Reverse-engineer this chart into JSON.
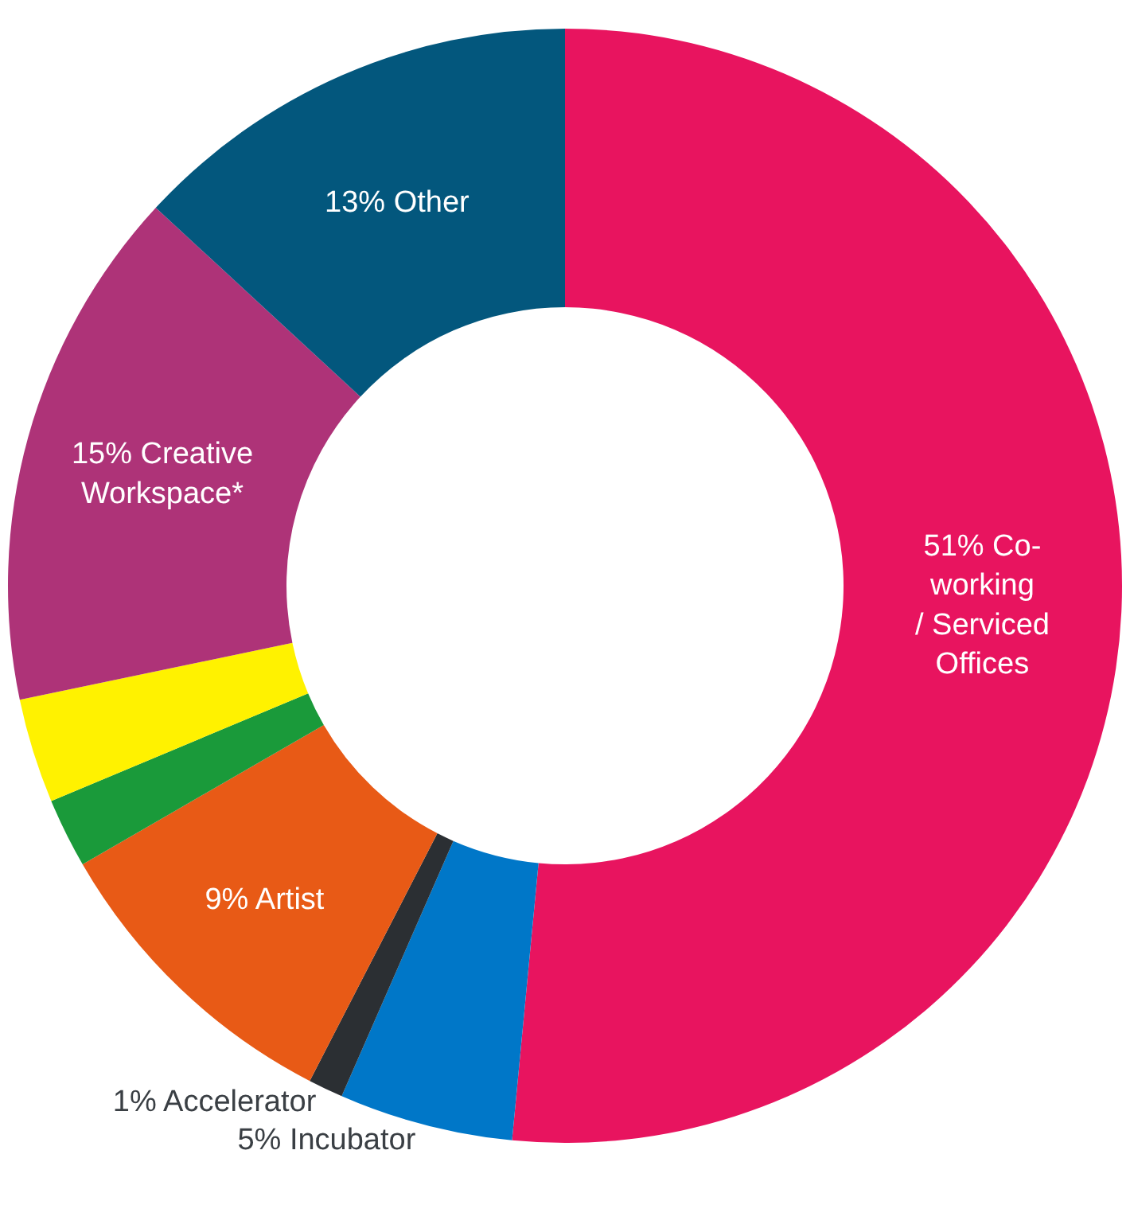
{
  "chart_data": {
    "type": "donut",
    "categories": [
      "51% Co-\nworking\n/ Serviced\nOffices",
      "5% Incubator",
      "1% Accelerator",
      "9% Artist",
      null,
      null,
      "15% Creative\nWorkspace*",
      "13% Other"
    ],
    "values": [
      51,
      5,
      1,
      9,
      2,
      3,
      15,
      13
    ],
    "colors": [
      "#e8145f",
      "#0077c8",
      "#2b2f33",
      "#e85a16",
      "#1a9a3a",
      "#fff200",
      "#ae3378",
      "#03577d"
    ],
    "legend": false
  }
}
